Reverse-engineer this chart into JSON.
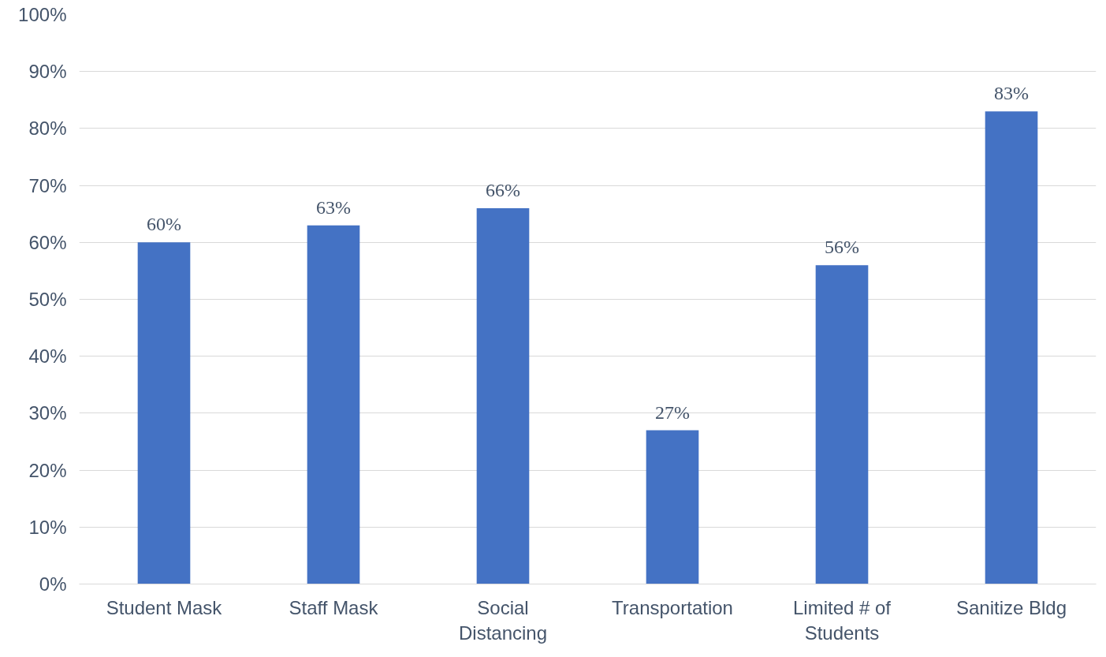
{
  "chart_data": {
    "type": "bar",
    "categories": [
      "Student Mask",
      "Staff Mask",
      "Social Distancing",
      "Transportation",
      "Limited # of Students",
      "Sanitize Bldg"
    ],
    "values": [
      60,
      63,
      66,
      27,
      56,
      83
    ],
    "color": "#4472c4",
    "value_labels": [
      "60%",
      "63%",
      "66%",
      "27%",
      "56%",
      "83%"
    ],
    "ylim": [
      0,
      100
    ],
    "yticks": [
      {
        "value": 0,
        "label": "0%"
      },
      {
        "value": 10,
        "label": "10%"
      },
      {
        "value": 20,
        "label": "20%"
      },
      {
        "value": 30,
        "label": "30%"
      },
      {
        "value": 40,
        "label": "40%"
      },
      {
        "value": 50,
        "label": "50%"
      },
      {
        "value": 60,
        "label": "60%"
      },
      {
        "value": 70,
        "label": "70%"
      },
      {
        "value": 80,
        "label": "80%"
      },
      {
        "value": 90,
        "label": "90%"
      },
      {
        "value": 100,
        "label": "100%"
      }
    ],
    "grid": "y"
  }
}
